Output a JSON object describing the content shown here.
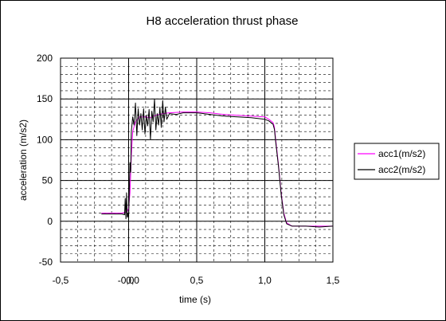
{
  "chart_data": {
    "type": "line",
    "title": "H8 acceleration thrust phase",
    "xlabel": "time (s)",
    "ylabel": "acceleration (m/s2)",
    "xlim": [
      -0.5,
      1.5
    ],
    "ylim": [
      -50,
      200
    ],
    "x_major_step": 0.5,
    "y_major_step": 50,
    "x_minor_step": 0.125,
    "y_minor_step": 10,
    "x_tick_labels": [
      "-0,5",
      "-0,0",
      "0,0",
      "0,5",
      "1,0",
      "1,5"
    ],
    "x_tick_values": [
      -0.5,
      -0.02,
      0.03,
      0.5,
      1.0,
      1.5
    ],
    "y_tick_labels": [
      "200",
      "150",
      "100",
      "50",
      "0",
      "-50"
    ],
    "y_tick_values": [
      200,
      150,
      100,
      50,
      0,
      -50
    ],
    "grid": true,
    "legend_position": "right",
    "series": [
      {
        "name": "acc1(m/s2)",
        "color": "#ff00ff",
        "points": [
          [
            -0.2,
            10
          ],
          [
            -0.1,
            10
          ],
          [
            -0.05,
            10
          ],
          [
            -0.02,
            11
          ],
          [
            -0.01,
            12
          ],
          [
            0.0,
            16
          ],
          [
            0.01,
            35
          ],
          [
            0.02,
            80
          ],
          [
            0.03,
            110
          ],
          [
            0.05,
            122
          ],
          [
            0.08,
            128
          ],
          [
            0.12,
            128
          ],
          [
            0.16,
            127
          ],
          [
            0.2,
            130
          ],
          [
            0.25,
            132
          ],
          [
            0.3,
            133
          ],
          [
            0.4,
            134
          ],
          [
            0.5,
            134
          ],
          [
            0.6,
            133
          ],
          [
            0.7,
            131
          ],
          [
            0.8,
            130
          ],
          [
            0.9,
            129
          ],
          [
            1.0,
            128
          ],
          [
            1.03,
            125
          ],
          [
            1.06,
            121
          ],
          [
            1.07,
            116
          ],
          [
            1.08,
            100
          ],
          [
            1.1,
            70
          ],
          [
            1.12,
            35
          ],
          [
            1.14,
            10
          ],
          [
            1.16,
            -2
          ],
          [
            1.2,
            -6
          ],
          [
            1.3,
            -6
          ],
          [
            1.4,
            -6
          ],
          [
            1.5,
            -6
          ]
        ]
      },
      {
        "name": "acc2(m/s2)",
        "color": "#000000",
        "points": [
          [
            -0.2,
            9
          ],
          [
            -0.15,
            9
          ],
          [
            -0.1,
            9
          ],
          [
            -0.05,
            9
          ],
          [
            -0.03,
            8
          ],
          [
            -0.025,
            28
          ],
          [
            -0.02,
            3
          ],
          [
            -0.015,
            35
          ],
          [
            -0.01,
            5
          ],
          [
            -0.005,
            10
          ],
          [
            0.0,
            3
          ],
          [
            0.005,
            40
          ],
          [
            0.01,
            72
          ],
          [
            0.015,
            60
          ],
          [
            0.02,
            110
          ],
          [
            0.03,
            128
          ],
          [
            0.04,
            118
          ],
          [
            0.05,
            145
          ],
          [
            0.06,
            105
          ],
          [
            0.07,
            138
          ],
          [
            0.08,
            118
          ],
          [
            0.09,
            132
          ],
          [
            0.1,
            112
          ],
          [
            0.11,
            138
          ],
          [
            0.12,
            107
          ],
          [
            0.13,
            130
          ],
          [
            0.14,
            117
          ],
          [
            0.15,
            137
          ],
          [
            0.16,
            100
          ],
          [
            0.17,
            135
          ],
          [
            0.18,
            122
          ],
          [
            0.19,
            150
          ],
          [
            0.2,
            112
          ],
          [
            0.21,
            132
          ],
          [
            0.22,
            118
          ],
          [
            0.23,
            140
          ],
          [
            0.24,
            115
          ],
          [
            0.25,
            148
          ],
          [
            0.26,
            122
          ],
          [
            0.27,
            140
          ],
          [
            0.28,
            125
          ],
          [
            0.3,
            132
          ],
          [
            0.35,
            131
          ],
          [
            0.4,
            133
          ],
          [
            0.45,
            133
          ],
          [
            0.5,
            133
          ],
          [
            0.55,
            132
          ],
          [
            0.6,
            131
          ],
          [
            0.7,
            129
          ],
          [
            0.8,
            128
          ],
          [
            0.9,
            127
          ],
          [
            1.0,
            125
          ],
          [
            1.03,
            123
          ],
          [
            1.06,
            119
          ],
          [
            1.07,
            113
          ],
          [
            1.08,
            97
          ],
          [
            1.1,
            68
          ],
          [
            1.12,
            33
          ],
          [
            1.14,
            8
          ],
          [
            1.16,
            -3
          ],
          [
            1.2,
            -6
          ],
          [
            1.3,
            -6
          ],
          [
            1.4,
            -7
          ],
          [
            1.5,
            -6
          ]
        ]
      }
    ]
  }
}
